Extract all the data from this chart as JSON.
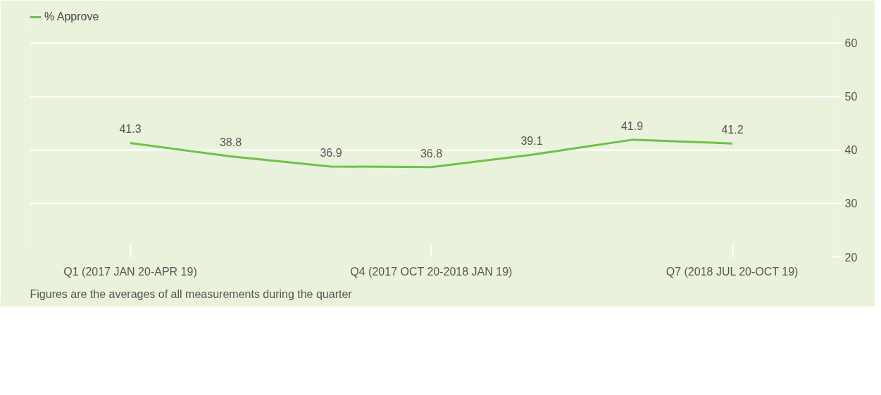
{
  "chart_data": {
    "type": "line",
    "categories": [
      "Q1 (2017 JAN 20-APR 19)",
      null,
      null,
      "Q4 (2017 OCT 20-2018 JAN 19)",
      null,
      null,
      "Q7 (2018 JUL 20-OCT 19)"
    ],
    "series": [
      {
        "name": "% Approve",
        "color": "#6cc24a",
        "values": [
          41.3,
          38.8,
          36.9,
          36.8,
          39.1,
          41.9,
          41.2
        ]
      }
    ],
    "ylim": [
      20,
      66
    ],
    "yticks": [
      20,
      30,
      40,
      50,
      60
    ],
    "grid": "y",
    "legend": "top left",
    "data_labels": true,
    "marker": "none",
    "annotations": [
      "Figures are the averages of all measurements during the quarter"
    ]
  }
}
